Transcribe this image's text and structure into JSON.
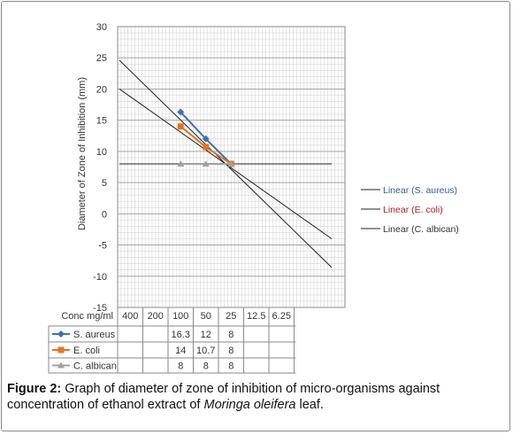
{
  "chart_data": {
    "type": "line",
    "ylabel": "Diameter of Zone of Inhibition (mm)",
    "ylim": [
      -15,
      30
    ],
    "yticks": [
      -15,
      -10,
      -5,
      0,
      5,
      10,
      15,
      20,
      25,
      30
    ],
    "grid": true,
    "table_header": "Conc mg/ml",
    "categories": [
      "400",
      "200",
      "100",
      "50",
      "25",
      "12.5",
      "6.25"
    ],
    "series": [
      {
        "name": "S. aureus",
        "color": "#3f72b0",
        "marker": "diamond",
        "values": [
          null,
          null,
          16.3,
          12,
          8,
          null,
          null
        ],
        "value_labels": [
          "",
          "",
          "16.3",
          "12",
          "8",
          "",
          ""
        ],
        "trend_name": "Linear (S. aureus)",
        "trend_label_color": "#2e5fa3",
        "trend_endpoints": [
          24.6,
          -8.6
        ]
      },
      {
        "name": "E. coli",
        "color": "#e07524",
        "marker": "square",
        "values": [
          null,
          null,
          14,
          10.7,
          8,
          null,
          null
        ],
        "value_labels": [
          "",
          "",
          "14",
          "10.7",
          "8",
          "",
          ""
        ],
        "trend_name": "Linear (E. coli)",
        "trend_label_color": "#b02020",
        "trend_endpoints": [
          20.0,
          -4.0
        ]
      },
      {
        "name": "C. albican",
        "color": "#a0a0a0",
        "marker": "triangle",
        "values": [
          null,
          null,
          8,
          8,
          8,
          null,
          null
        ],
        "value_labels": [
          "",
          "",
          "8",
          "8",
          "8",
          "",
          ""
        ],
        "trend_name": "Linear (C. albican)",
        "trend_label_color": "#333333",
        "trend_endpoints": [
          8,
          8
        ]
      }
    ],
    "legend_position": "right"
  },
  "caption": {
    "label": "Figure 2:",
    "text_before": " Graph of diameter of zone of inhibition of micro-organisms against concentration of ethanol extract of ",
    "species": "Moringa oleifera",
    "text_after": " leaf."
  }
}
